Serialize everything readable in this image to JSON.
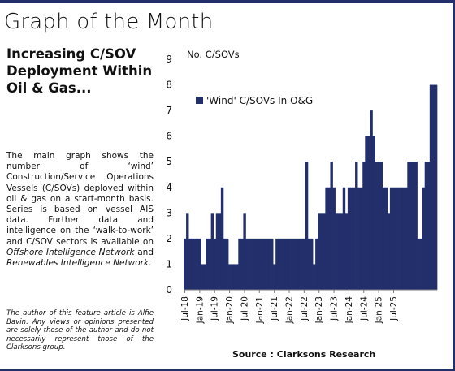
{
  "page": {
    "title": "Graph of the Month",
    "headline": "Increasing C/SOV Deployment Within Oil & Gas...",
    "body_parts": [
      {
        "text": "The main graph shows the number of ‘wind’ Construction/Service Operations Vessels (C/SOVs) deployed within oil & gas on a start-month basis. Series is based on vessel AIS data. Further data and intelligence on the ‘walk-to-work’ and C/SOV sectors is available on ",
        "italic": false
      },
      {
        "text": "Offshore Intelligence Network",
        "italic": true
      },
      {
        "text": " and ",
        "italic": false
      },
      {
        "text": "Renewables Intelligence Network",
        "italic": true
      },
      {
        "text": ".",
        "italic": false
      }
    ],
    "disclaimer": "The author of this feature article is Alfie Bavin. Any views or opinions presented are solely those of the author and do not necessarily represent those of the Clarksons group.",
    "source": "Source : Clarksons Research"
  },
  "colors": {
    "bar": "#232f6b",
    "frame": "#232f6b",
    "gridline": "#7f7f7f"
  },
  "chart_data": {
    "type": "bar",
    "ylabel": "No. C/SOVs",
    "ylim": [
      0,
      9
    ],
    "yticks": [
      0,
      1,
      2,
      3,
      4,
      5,
      6,
      7,
      8,
      9
    ],
    "grid": false,
    "legend_position": "top-left",
    "tick_labels": [
      "Jul-18",
      "Jan-19",
      "Jul-19",
      "Jan-20",
      "Jul-20",
      "Jan-21",
      "Jul-21",
      "Jan-22",
      "Jul-22",
      "Jan-23",
      "Jul-23",
      "Jan-24",
      "Jul-24",
      "Jan-25",
      "Jul-25"
    ],
    "tick_every": 6,
    "series": [
      {
        "name": "'Wind' C/SOVs In O&G",
        "start": "Jul-18",
        "values": [
          2,
          3,
          2,
          2,
          2,
          2,
          2,
          1,
          1,
          2,
          2,
          3,
          2,
          3,
          3,
          4,
          2,
          2,
          1,
          1,
          1,
          1,
          2,
          2,
          3,
          2,
          2,
          2,
          2,
          2,
          2,
          2,
          2,
          2,
          2,
          2,
          1,
          2,
          2,
          2,
          2,
          2,
          2,
          2,
          2,
          2,
          2,
          2,
          2,
          5,
          2,
          2,
          1,
          2,
          3,
          3,
          3,
          4,
          4,
          5,
          4,
          3,
          3,
          3,
          4,
          3,
          4,
          4,
          4,
          5,
          4,
          4,
          5,
          6,
          6,
          7,
          6,
          5,
          5,
          5,
          4,
          4,
          3,
          4,
          4,
          4,
          4,
          4,
          4,
          4,
          5,
          5,
          5,
          5,
          2,
          2,
          4,
          5,
          5,
          8,
          8,
          8
        ]
      }
    ]
  }
}
